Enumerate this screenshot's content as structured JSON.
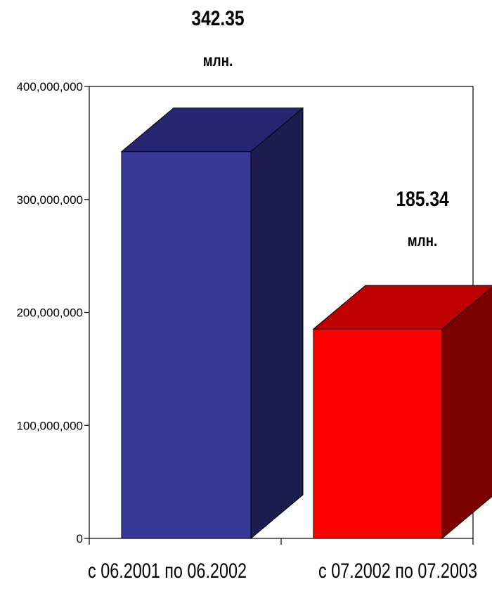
{
  "chart_data": {
    "type": "bar",
    "categories": [
      "с 06.2001 по 06.2002",
      "с 07.2002 по 07.2003"
    ],
    "values": [
      342350000,
      185340000
    ],
    "ylim": [
      0,
      400000000
    ],
    "yticks": [
      0,
      100000000,
      200000000,
      300000000,
      400000000
    ],
    "ytick_labels": [
      "0",
      "100,000,000",
      "200,000,000",
      "300,000,000",
      "400,000,000"
    ],
    "data_labels": [
      {
        "value": "342.35",
        "unit": "млн."
      },
      {
        "value": "185.34",
        "unit": "млн."
      }
    ],
    "colors": [
      {
        "front": "#383899",
        "top": "#262670",
        "side": "#1c1c4e"
      },
      {
        "front": "#ff0000",
        "top": "#bf0000",
        "side": "#7d0000"
      }
    ],
    "style": "3d-column",
    "grid": false,
    "legend": "none"
  }
}
